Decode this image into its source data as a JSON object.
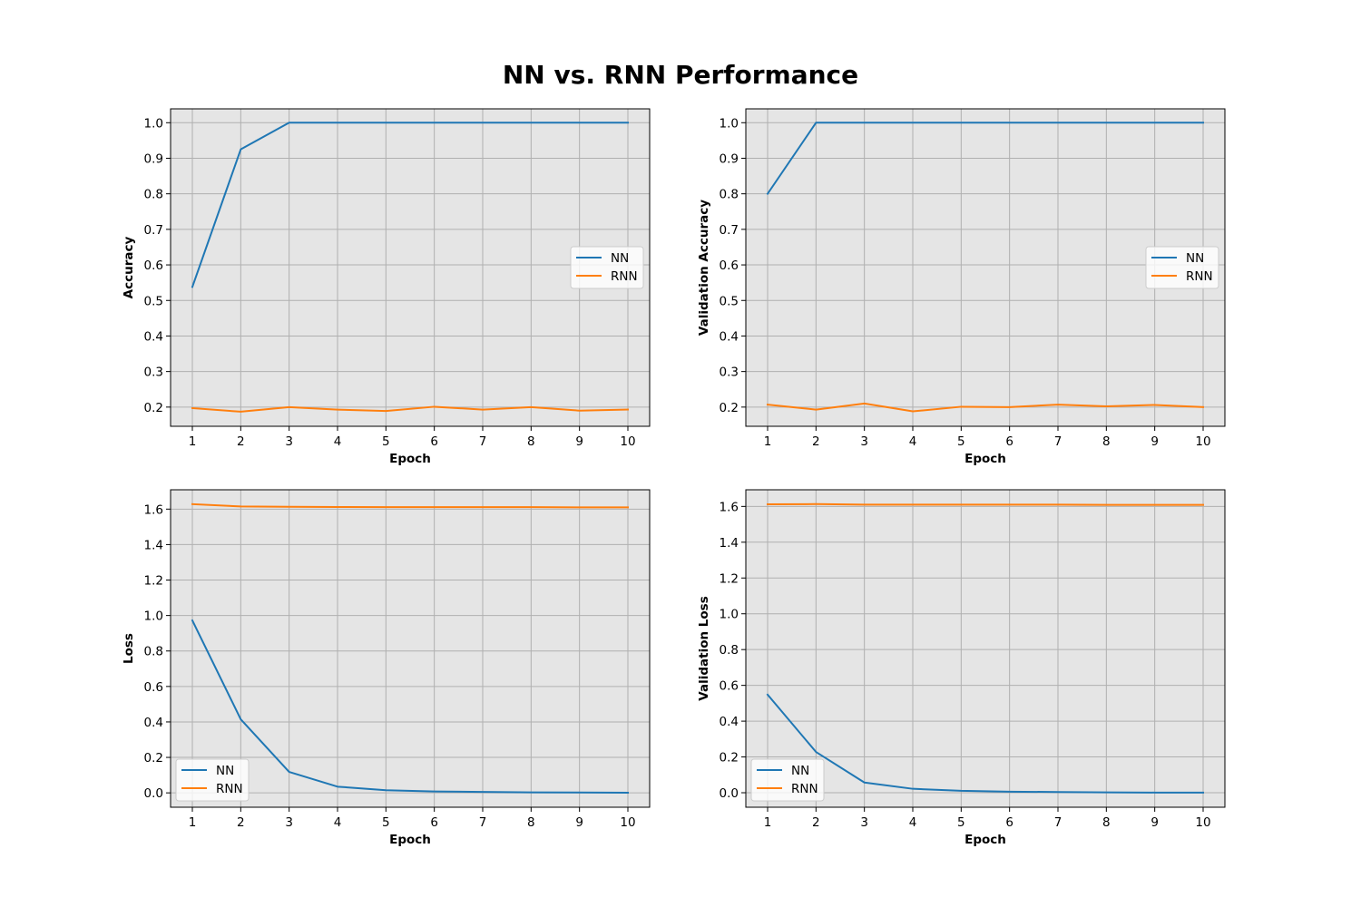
{
  "figure": {
    "title": "NN vs. RNN Performance"
  },
  "colors": {
    "nn": "#1f77b4",
    "rnn": "#ff7f0e",
    "plot_bg": "#e5e5e5",
    "grid": "#b0b0b0"
  },
  "chart_data": [
    {
      "type": "line",
      "title": "",
      "xlabel": "Epoch",
      "ylabel": "Accuracy",
      "x": [
        1,
        2,
        3,
        4,
        5,
        6,
        7,
        8,
        9,
        10
      ],
      "xlim": [
        0.55,
        10.45
      ],
      "ylim": [
        0.146,
        1.039
      ],
      "xticks": [
        1,
        2,
        3,
        4,
        5,
        6,
        7,
        8,
        9,
        10
      ],
      "yticks": [
        "0.2",
        "0.3",
        "0.4",
        "0.5",
        "0.6",
        "0.7",
        "0.8",
        "0.9",
        "1.0"
      ],
      "grid": true,
      "legend_position": "center-right",
      "series": [
        {
          "name": "NN",
          "values": [
            0.538,
            0.925,
            1.0,
            1.0,
            1.0,
            1.0,
            1.0,
            1.0,
            1.0,
            1.0
          ]
        },
        {
          "name": "RNN",
          "values": [
            0.197,
            0.187,
            0.2,
            0.193,
            0.189,
            0.201,
            0.193,
            0.2,
            0.19,
            0.193
          ]
        }
      ]
    },
    {
      "type": "line",
      "title": "",
      "xlabel": "Epoch",
      "ylabel": "Validation Accuracy",
      "x": [
        1,
        2,
        3,
        4,
        5,
        6,
        7,
        8,
        9,
        10
      ],
      "xlim": [
        0.55,
        10.45
      ],
      "ylim": [
        0.146,
        1.039
      ],
      "xticks": [
        1,
        2,
        3,
        4,
        5,
        6,
        7,
        8,
        9,
        10
      ],
      "yticks": [
        "0.2",
        "0.3",
        "0.4",
        "0.5",
        "0.6",
        "0.7",
        "0.8",
        "0.9",
        "1.0"
      ],
      "grid": true,
      "legend_position": "center-right",
      "series": [
        {
          "name": "NN",
          "values": [
            0.8,
            1.0,
            1.0,
            1.0,
            1.0,
            1.0,
            1.0,
            1.0,
            1.0,
            1.0
          ]
        },
        {
          "name": "RNN",
          "values": [
            0.207,
            0.193,
            0.21,
            0.188,
            0.201,
            0.2,
            0.207,
            0.202,
            0.206,
            0.2
          ]
        }
      ]
    },
    {
      "type": "line",
      "title": "",
      "xlabel": "Epoch",
      "ylabel": "Loss",
      "x": [
        1,
        2,
        3,
        4,
        5,
        6,
        7,
        8,
        9,
        10
      ],
      "xlim": [
        0.55,
        10.45
      ],
      "ylim": [
        -0.081,
        1.709
      ],
      "xticks": [
        1,
        2,
        3,
        4,
        5,
        6,
        7,
        8,
        9,
        10
      ],
      "yticks": [
        "0.0",
        "0.2",
        "0.4",
        "0.6",
        "0.8",
        "1.0",
        "1.2",
        "1.4",
        "1.6"
      ],
      "grid": true,
      "legend_position": "lower-left",
      "series": [
        {
          "name": "NN",
          "values": [
            0.972,
            0.415,
            0.118,
            0.035,
            0.015,
            0.008,
            0.005,
            0.003,
            0.002,
            0.001
          ]
        },
        {
          "name": "RNN",
          "values": [
            1.628,
            1.615,
            1.613,
            1.612,
            1.611,
            1.611,
            1.611,
            1.611,
            1.61,
            1.61
          ]
        }
      ]
    },
    {
      "type": "line",
      "title": "",
      "xlabel": "Epoch",
      "ylabel": "Validation Loss",
      "x": [
        1,
        2,
        3,
        4,
        5,
        6,
        7,
        8,
        9,
        10
      ],
      "xlim": [
        0.55,
        10.45
      ],
      "ylim": [
        -0.081,
        1.693
      ],
      "xticks": [
        1,
        2,
        3,
        4,
        5,
        6,
        7,
        8,
        9,
        10
      ],
      "yticks": [
        "0.0",
        "0.2",
        "0.4",
        "0.6",
        "0.8",
        "1.0",
        "1.2",
        "1.4",
        "1.6"
      ],
      "grid": true,
      "legend_position": "lower-left",
      "series": [
        {
          "name": "NN",
          "values": [
            0.548,
            0.228,
            0.057,
            0.022,
            0.011,
            0.006,
            0.004,
            0.002,
            0.001,
            0.001
          ]
        },
        {
          "name": "RNN",
          "values": [
            1.612,
            1.613,
            1.61,
            1.61,
            1.61,
            1.61,
            1.61,
            1.609,
            1.609,
            1.609
          ]
        }
      ]
    }
  ]
}
